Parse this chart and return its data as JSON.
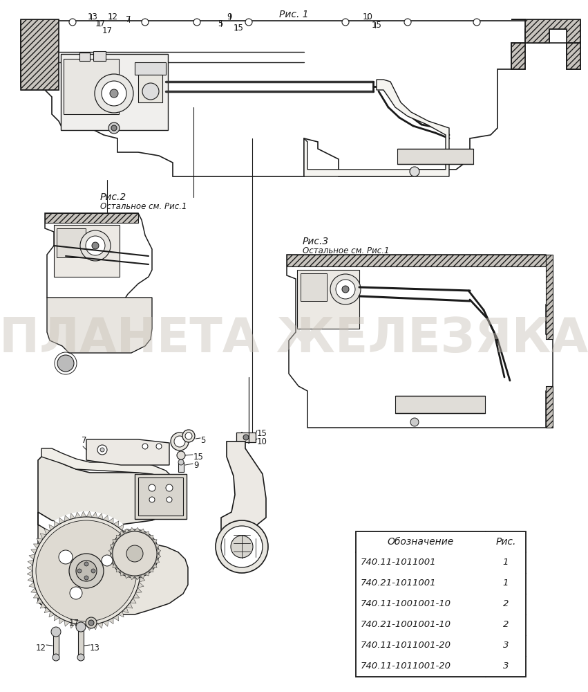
{
  "bg_color": "#f2efe9",
  "line_color": "#1a1a1a",
  "watermark_text": "ПЛАНЕТА ЖЕЛЕЗЯКА",
  "watermark_color": "#c9c2b8",
  "watermark_alpha": 0.45,
  "fig1_label": "Рис. 1",
  "fig2_label": "Рис.2",
  "fig2_sub": "Остальное см. Рис.1",
  "fig3_label": "Рис.3",
  "fig3_sub": "Остальное см. Рис.1",
  "table_headers": [
    "Обозначение",
    "Рис."
  ],
  "table_rows": [
    [
      "740.11-1011001",
      "1"
    ],
    [
      "740.21-1011001",
      "1"
    ],
    [
      "740.11-1001001-10",
      "2"
    ],
    [
      "740.21-1001001-10",
      "2"
    ],
    [
      "740.11-1011001-20",
      "3"
    ],
    [
      "740.11-1011001-20",
      "3"
    ]
  ]
}
